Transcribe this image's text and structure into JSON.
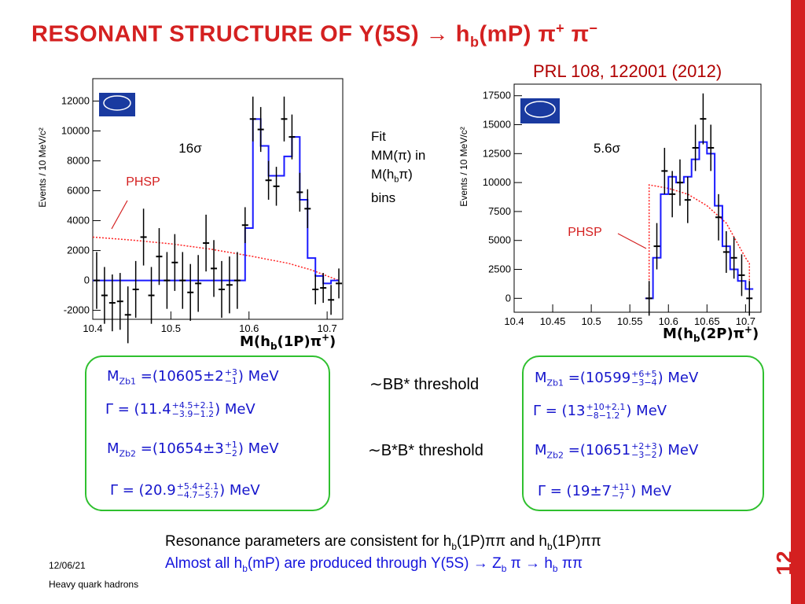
{
  "slide": {
    "title_main": "RESONANT STRUCTURE OF Y(5S) → h",
    "title_b": "b",
    "title_rest": "(mP) π",
    "title_sup1": "+",
    "title_pi2": " π",
    "title_sup2": "−",
    "reference": "PRL 108, 122001 (2012)",
    "fit_note_line1": "Fit",
    "fit_note_line2": "MM(π) in",
    "fit_note_line3_a": "M(h",
    "fit_note_line3_b": "b",
    "fit_note_line3_c": "π)",
    "fit_note_line4": "bins",
    "date": "12/06/21",
    "footer": "Heavy quark hadrons",
    "page_number": "12"
  },
  "params_left": {
    "m1_a": "M",
    "m1_sub": "Zb1",
    "m1_b": " =(10605±2",
    "m1_up": "+3",
    "m1_dn": "−1",
    "m1_c": ") MeV",
    "g1_a": "Γ = (11.4",
    "g1_up": "+4.5+2.1",
    "g1_dn": "−3.9−1.2",
    "g1_c": ")  MeV",
    "m2_a": "M",
    "m2_sub": "Zb2",
    "m2_b": " =(10654±3",
    "m2_up": "+1",
    "m2_dn": "−2",
    "m2_c": ") MeV",
    "g2_a": "Γ = (20.9",
    "g2_up": "+5.4+2.1",
    "g2_dn": "−4.7−5.7",
    "g2_c": ")  MeV"
  },
  "params_right": {
    "m1_a": "M",
    "m1_sub": "Zb1",
    "m1_b": " =(10599",
    "m1_up": "+6+5",
    "m1_dn": "−3−4",
    "m1_c": ") MeV",
    "g1_a": "Γ = (13",
    "g1_up": "+10+2.1",
    "g1_dn": "−8−1.2",
    "g1_c": ") MeV",
    "m2_a": "M",
    "m2_sub": "Zb2",
    "m2_b": " =(10651",
    "m2_up": "+2+3",
    "m2_dn": "−3−2",
    "m2_c": ") MeV",
    "g2_a": "Γ = (19±7",
    "g2_up": "+11",
    "g2_dn": "−7",
    "g2_c": ") MeV"
  },
  "thresholds": {
    "t1_sym": "∼",
    "t1_text": "BB* threshold",
    "t2_sym": "∼",
    "t2_text": "B*B* threshold"
  },
  "bottom_lines": {
    "line1_a": "Resonance parameters are consistent for h",
    "line1_b": "b",
    "line1_c": "(1P)ππ and h",
    "line1_d": "b",
    "line1_e": "(1P)ππ",
    "line2_a": "Almost all h",
    "line2_b": "b",
    "line2_c": "(mP) are produced through Y(5S) → Z",
    "line2_d": "b",
    "line2_e": " π → h",
    "line2_f": "b",
    "line2_g": " ππ"
  },
  "colors": {
    "title": "#d42020",
    "box_border": "#2fc02f",
    "param_text": "#1515cc",
    "fit_line": "#1a1aff",
    "phsp_line": "#ff2020",
    "logo": "#1a3aa0"
  },
  "chart_data": [
    {
      "type": "histogram",
      "ylabel": "Events / 10 MeV/c²",
      "xlabel_a": "M(h",
      "xlabel_b": "b",
      "xlabel_c": "(1P)π",
      "xlabel_d": "+",
      "xlabel_e": ")",
      "significance": "16σ",
      "phsp_label": "PHSP",
      "xlim": [
        10.4,
        10.72
      ],
      "ylim": [
        -2600,
        13500
      ],
      "xticks": [
        10.4,
        10.5,
        10.6,
        10.7
      ],
      "xtick_labels": [
        "10.4",
        "10.5",
        "10.6",
        "10.7"
      ],
      "yticks": [
        -2000,
        0,
        2000,
        4000,
        6000,
        8000,
        10000,
        12000
      ],
      "ytick_labels": [
        "-2000",
        "0",
        "2000",
        "4000",
        "6000",
        "8000",
        "10000",
        "12000"
      ],
      "logo_icon": "belle-logo-icon",
      "data_points": {
        "x": [
          10.405,
          10.415,
          10.425,
          10.435,
          10.445,
          10.455,
          10.465,
          10.475,
          10.485,
          10.495,
          10.505,
          10.515,
          10.525,
          10.535,
          10.545,
          10.555,
          10.565,
          10.575,
          10.585,
          10.595,
          10.605,
          10.615,
          10.625,
          10.635,
          10.645,
          10.655,
          10.665,
          10.675,
          10.685,
          10.695,
          10.705,
          10.715
        ],
        "y": [
          0,
          -1000,
          -1500,
          -1400,
          -2300,
          -600,
          2900,
          -1000,
          1600,
          0,
          1200,
          0,
          -800,
          -200,
          2500,
          800,
          -600,
          -300,
          0,
          3700,
          10800,
          10100,
          6700,
          6300,
          10800,
          9600,
          5900,
          4800,
          -600,
          -500,
          -1300,
          -200
        ],
        "err": [
          1900,
          1900,
          1900,
          1900,
          1900,
          1900,
          1900,
          1900,
          1900,
          1900,
          1900,
          1900,
          1900,
          1900,
          1900,
          1900,
          1900,
          1900,
          1900,
          1200,
          1500,
          1500,
          1300,
          1300,
          1500,
          1500,
          1300,
          1300,
          1000,
          1000,
          1000,
          1000
        ]
      },
      "fit_line": {
        "x": [
          10.4,
          10.595,
          10.595,
          10.605,
          10.605,
          10.615,
          10.615,
          10.625,
          10.625,
          10.635,
          10.635,
          10.645,
          10.645,
          10.655,
          10.655,
          10.665,
          10.665,
          10.675,
          10.675,
          10.685,
          10.685,
          10.695,
          10.695,
          10.705,
          10.705,
          10.715
        ],
        "y": [
          0,
          0,
          3500,
          3500,
          10800,
          10800,
          9000,
          9000,
          7000,
          7000,
          7000,
          7000,
          8300,
          8300,
          9600,
          9600,
          5400,
          5400,
          1500,
          1500,
          300,
          300,
          -200,
          -200,
          0,
          0
        ]
      },
      "phsp_line": {
        "x": [
          10.4,
          10.45,
          10.5,
          10.55,
          10.6,
          10.65,
          10.68,
          10.715
        ],
        "y": [
          2900,
          2700,
          2450,
          2100,
          1650,
          1150,
          700,
          0
        ]
      }
    },
    {
      "type": "histogram",
      "ylabel": "Events / 10 MeV/c²",
      "xlabel_a": "M(h",
      "xlabel_b": "b",
      "xlabel_c": "(2P)π",
      "xlabel_d": "+",
      "xlabel_e": ")",
      "significance": "5.6σ",
      "phsp_label": "PHSP",
      "xlim": [
        10.4,
        10.72
      ],
      "ylim": [
        -1200,
        18500
      ],
      "xticks": [
        10.4,
        10.45,
        10.5,
        10.55,
        10.6,
        10.65,
        10.7
      ],
      "xtick_labels": [
        "10.4",
        "10.45",
        "10.5",
        "10.55",
        "10.6",
        "10.65",
        "10.7"
      ],
      "yticks": [
        0,
        2500,
        5000,
        7500,
        10000,
        12500,
        15000,
        17500
      ],
      "ytick_labels": [
        "0",
        "2500",
        "5000",
        "7500",
        "10000",
        "12500",
        "15000",
        "17500"
      ],
      "logo_icon": "belle-logo-icon",
      "data_points": {
        "x": [
          10.575,
          10.585,
          10.595,
          10.605,
          10.615,
          10.625,
          10.635,
          10.645,
          10.655,
          10.665,
          10.675,
          10.685,
          10.695,
          10.705
        ],
        "y": [
          0,
          4500,
          11000,
          9000,
          10000,
          8500,
          13000,
          15500,
          13000,
          7000,
          4000,
          3500,
          2000,
          0
        ],
        "err": [
          1500,
          2000,
          2000,
          2000,
          2000,
          2000,
          2000,
          2200,
          2000,
          2000,
          1800,
          1800,
          1800,
          1500
        ]
      },
      "fit_line": {
        "x": [
          10.57,
          10.58,
          10.58,
          10.59,
          10.59,
          10.6,
          10.6,
          10.61,
          10.61,
          10.62,
          10.62,
          10.63,
          10.63,
          10.64,
          10.64,
          10.65,
          10.65,
          10.66,
          10.66,
          10.67,
          10.67,
          10.68,
          10.68,
          10.69,
          10.69,
          10.7,
          10.7,
          10.71
        ],
        "y": [
          0,
          0,
          3500,
          3500,
          9000,
          9000,
          10500,
          10500,
          10000,
          10000,
          10500,
          10500,
          12000,
          12000,
          13500,
          13500,
          12500,
          12500,
          8000,
          8000,
          4500,
          4500,
          2500,
          2500,
          1500,
          1500,
          800,
          800
        ]
      },
      "phsp_line": {
        "x": [
          10.57,
          10.575,
          10.575,
          10.6,
          10.625,
          10.65,
          10.675,
          10.7,
          10.705,
          10.705
        ],
        "y": [
          0,
          0,
          9800,
          9500,
          9000,
          8000,
          6500,
          3500,
          3000,
          0
        ]
      }
    }
  ]
}
